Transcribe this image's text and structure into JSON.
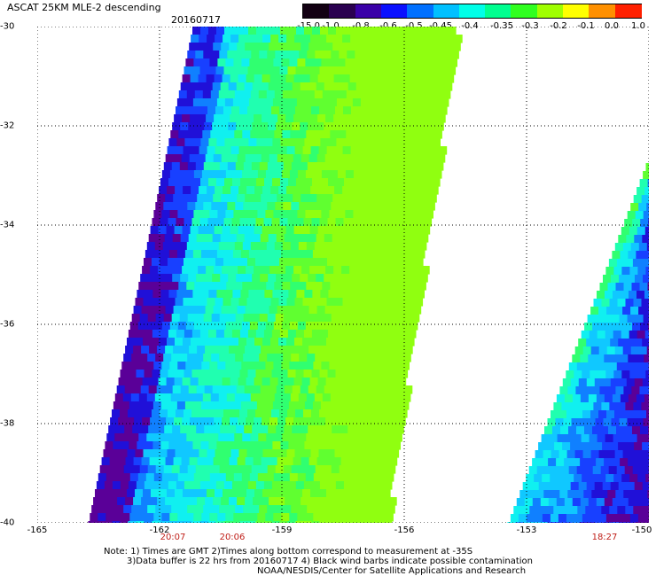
{
  "title": "ASCAT 25KM MLE-2 descending",
  "date": "20160717",
  "colorbar": {
    "labels": [
      "-15.0",
      "-1.0",
      "-0.8",
      "-0.6",
      "-0.5",
      "-0.45",
      "-0.4",
      "-0.35",
      "-0.3",
      "-0.2",
      "-0.1",
      "0.0",
      "1.0"
    ],
    "colors": [
      "#120012",
      "#2a0050",
      "#3a00a8",
      "#0a10ff",
      "#0070ff",
      "#00c0ff",
      "#00ffe8",
      "#00ff90",
      "#30ff20",
      "#a0ff00",
      "#ffff00",
      "#ff9000",
      "#ff2000"
    ]
  },
  "axes": {
    "lat_ticks": [
      "-30",
      "-32",
      "-34",
      "-36",
      "-38",
      "-40"
    ],
    "lon_ticks": [
      "-165",
      "-162",
      "-159",
      "-156",
      "-153",
      "-150"
    ],
    "lat_range": [
      -40,
      -30
    ],
    "lon_range": [
      -165,
      -150
    ]
  },
  "times": [
    "20:07",
    "20:06",
    "18:27"
  ],
  "notes": [
    "Note: 1) Times are GMT 2)Times along bottom correspond to measurement at -35S",
    "3)Data buffer is 22 hrs from 20160717 4) Black wind barbs indicate possible contamination",
    "NOAA/NESDIS/Center for Satellite Applications and Research"
  ]
}
